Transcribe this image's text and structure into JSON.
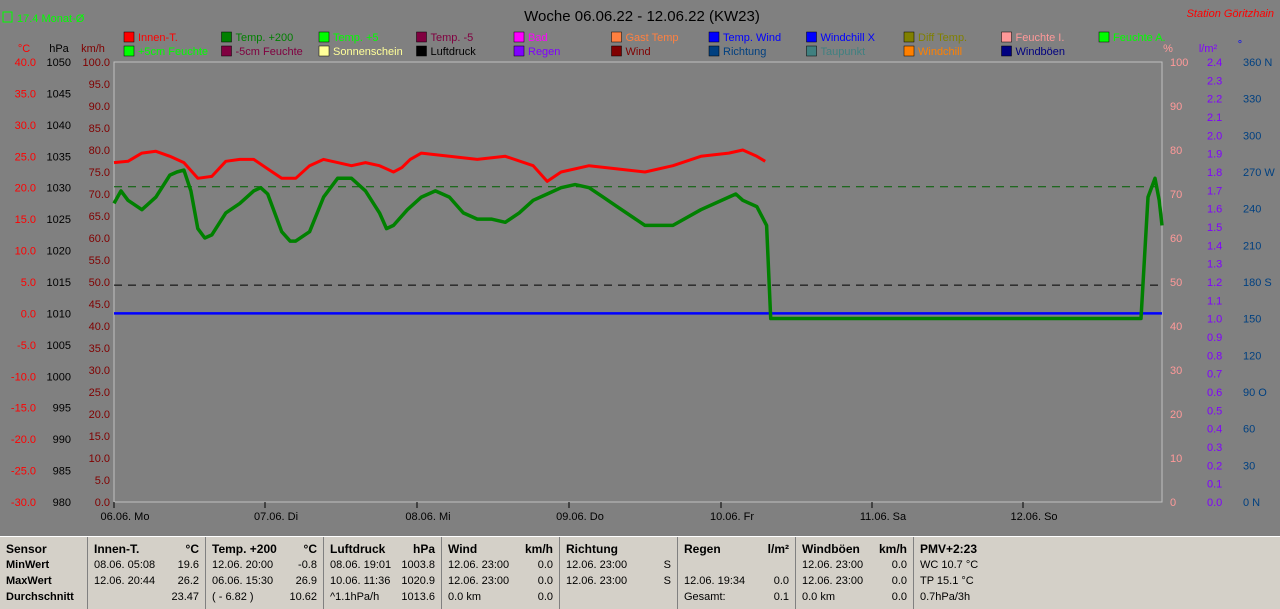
{
  "header": {
    "title": "Woche 06.06.22 - 12.06.22 (KW23)",
    "station": "Station Göritzhain",
    "monthly_avg": "17.4 Monat-Ø"
  },
  "units": {
    "c": "°C",
    "hpa": "hPa",
    "kmh": "km/h",
    "pct": "%",
    "lm2": "l/m²",
    "deg": "°"
  },
  "chart_data": {
    "type": "line",
    "x": [
      "06.06. Mo",
      "07.06. Di",
      "08.06. Mi",
      "09.06. Do",
      "10.06. Fr",
      "11.06. Sa",
      "12.06. So"
    ],
    "axes": {
      "temp": {
        "range": [
          -30,
          40
        ],
        "ticks": [
          "40.0",
          "35.0",
          "30.0",
          "25.0",
          "20.0",
          "15.0",
          "10.0",
          "5.0",
          "0.0",
          "-5.0",
          "-10.0",
          "-15.0",
          "-20.0",
          "-25.0",
          "-30.0"
        ]
      },
      "pressure": {
        "range": [
          980,
          1050
        ],
        "ticks": [
          "1050",
          "1045",
          "1040",
          "1035",
          "1030",
          "1025",
          "1020",
          "1015",
          "1010",
          "1005",
          "1000",
          "995",
          "990",
          "985",
          "980"
        ]
      },
      "wind": {
        "range": [
          0,
          100
        ],
        "ticks": [
          "100.0",
          "95.0",
          "90.0",
          "85.0",
          "80.0",
          "75.0",
          "70.0",
          "65.0",
          "60.0",
          "55.0",
          "50.0",
          "45.0",
          "40.0",
          "35.0",
          "30.0",
          "25.0",
          "20.0",
          "15.0",
          "10.0",
          "5.0",
          "0.0"
        ]
      },
      "humidity": {
        "range": [
          0,
          100
        ],
        "ticks": [
          "100",
          "90",
          "80",
          "70",
          "60",
          "50",
          "40",
          "30",
          "20",
          "10",
          "0"
        ]
      },
      "rain": {
        "range": [
          0,
          2.5
        ],
        "ticks": [
          "2.4",
          "2.3",
          "2.2",
          "2.1",
          "2.0",
          "1.9",
          "1.8",
          "1.7",
          "1.6",
          "1.5",
          "1.4",
          "1.3",
          "1.2",
          "1.1",
          "1.0",
          "0.9",
          "0.8",
          "0.7",
          "0.6",
          "0.5",
          "0.4",
          "0.3",
          "0.2",
          "0.1",
          "0.0"
        ]
      },
      "direction": {
        "range": [
          0,
          360
        ],
        "ticks": [
          "360 N",
          "330",
          "300",
          "270 W",
          "240",
          "210",
          "180 S",
          "150",
          "120",
          "90 O",
          "60",
          "30",
          "0 N"
        ]
      }
    },
    "legend": [
      {
        "name": "Innen-T.",
        "color": "#ff0000"
      },
      {
        "name": "Temp. +200",
        "color": "#008000"
      },
      {
        "name": "Temp. +5",
        "color": "#00ff00"
      },
      {
        "name": "Temp. -5",
        "color": "#800040"
      },
      {
        "name": "Bad",
        "color": "#ff00ff"
      },
      {
        "name": "Gast Temp",
        "color": "#ff8040"
      },
      {
        "name": "Temp. Wind",
        "color": "#0000ff"
      },
      {
        "name": "Windchill X",
        "color": "#0000ff"
      },
      {
        "name": "Diff Temp.",
        "color": "#808000"
      },
      {
        "name": "Feuchte I.",
        "color": "#ff9999"
      },
      {
        "name": "Feuchte A.",
        "color": "#00ff00"
      },
      {
        "name": "+5cm Feuchte",
        "color": "#00ff00"
      },
      {
        "name": "-5cm Feuchte",
        "color": "#800040"
      },
      {
        "name": "Sonnenschein",
        "color": "#ffff99"
      },
      {
        "name": "Luftdruck",
        "color": "#000000"
      },
      {
        "name": "Regen",
        "color": "#8000ff"
      },
      {
        "name": "Wind",
        "color": "#800000"
      },
      {
        "name": "Richtung",
        "color": "#004080"
      },
      {
        "name": "Taupunkt",
        "color": "#408080"
      },
      {
        "name": "Windchill",
        "color": "#ff8000"
      },
      {
        "name": "Windböen",
        "color": "#000080"
      }
    ],
    "series": [
      {
        "name": "Innen-T.",
        "axis": "temp",
        "values": [
          [
            0,
            24.0
          ],
          [
            10,
            24.2
          ],
          [
            20,
            25.5
          ],
          [
            30,
            25.8
          ],
          [
            40,
            25.0
          ],
          [
            50,
            24.0
          ],
          [
            60,
            21.5
          ],
          [
            70,
            21.8
          ],
          [
            80,
            24.2
          ],
          [
            90,
            24.5
          ],
          [
            100,
            24.5
          ],
          [
            110,
            23.0
          ],
          [
            120,
            21.5
          ],
          [
            130,
            21.5
          ],
          [
            140,
            23.5
          ],
          [
            150,
            24.5
          ],
          [
            160,
            24.0
          ],
          [
            170,
            23.5
          ],
          [
            180,
            24.0
          ],
          [
            190,
            23.5
          ],
          [
            200,
            22.5
          ],
          [
            206,
            23.2
          ],
          [
            212,
            24.5
          ],
          [
            220,
            25.5
          ],
          [
            240,
            25.0
          ],
          [
            260,
            24.5
          ],
          [
            280,
            25.0
          ],
          [
            300,
            23.5
          ],
          [
            310,
            21.0
          ],
          [
            320,
            22.5
          ],
          [
            340,
            23.5
          ],
          [
            360,
            23.0
          ],
          [
            380,
            22.5
          ],
          [
            400,
            23.5
          ],
          [
            420,
            25.0
          ],
          [
            440,
            25.5
          ],
          [
            450,
            26.0
          ],
          [
            460,
            25.0
          ],
          [
            466,
            24.2
          ]
        ]
      },
      {
        "name": "Temp. +200",
        "axis": "temp",
        "values": [
          [
            0,
            17.5
          ],
          [
            5,
            19.5
          ],
          [
            10,
            18.0
          ],
          [
            20,
            16.5
          ],
          [
            30,
            18.5
          ],
          [
            40,
            22.0
          ],
          [
            45,
            22.5
          ],
          [
            50,
            22.8
          ],
          [
            55,
            19.5
          ],
          [
            60,
            13.5
          ],
          [
            65,
            12.0
          ],
          [
            70,
            12.5
          ],
          [
            80,
            16.0
          ],
          [
            90,
            17.5
          ],
          [
            100,
            19.5
          ],
          [
            105,
            20.0
          ],
          [
            110,
            19.0
          ],
          [
            120,
            13.0
          ],
          [
            126,
            11.5
          ],
          [
            130,
            11.5
          ],
          [
            140,
            13.0
          ],
          [
            150,
            18.5
          ],
          [
            160,
            21.5
          ],
          [
            170,
            21.5
          ],
          [
            180,
            19.5
          ],
          [
            190,
            16.0
          ],
          [
            195,
            13.5
          ],
          [
            200,
            14.0
          ],
          [
            210,
            16.5
          ],
          [
            220,
            18.5
          ],
          [
            230,
            19.5
          ],
          [
            240,
            18.5
          ],
          [
            250,
            16.0
          ],
          [
            260,
            15.0
          ],
          [
            270,
            15.0
          ],
          [
            280,
            14.5
          ],
          [
            290,
            16.0
          ],
          [
            300,
            18.0
          ],
          [
            310,
            19.0
          ],
          [
            320,
            20.0
          ],
          [
            330,
            20.5
          ],
          [
            340,
            20.0
          ],
          [
            350,
            18.5
          ],
          [
            360,
            17.0
          ],
          [
            380,
            14.0
          ],
          [
            400,
            14.0
          ],
          [
            420,
            16.5
          ],
          [
            440,
            18.5
          ],
          [
            445,
            19.0
          ],
          [
            450,
            18.0
          ],
          [
            460,
            17.0
          ],
          [
            467,
            14.0
          ],
          [
            470,
            -0.8
          ],
          [
            480,
            -0.8
          ],
          [
            500,
            -0.8
          ],
          [
            520,
            -0.8
          ],
          [
            540,
            -0.8
          ],
          [
            560,
            -0.8
          ],
          [
            580,
            -0.8
          ],
          [
            600,
            -0.8
          ],
          [
            620,
            -0.8
          ],
          [
            640,
            -0.8
          ],
          [
            660,
            -0.8
          ],
          [
            680,
            -0.8
          ],
          [
            700,
            -0.8
          ],
          [
            720,
            -0.8
          ],
          [
            735,
            -0.8
          ],
          [
            740,
            18.5
          ],
          [
            745,
            21.5
          ],
          [
            748,
            18.0
          ],
          [
            750,
            14.0
          ]
        ]
      }
    ],
    "day_ticks_at": [
      0,
      151,
      303,
      455,
      607,
      758,
      909
    ],
    "day_minor_ticks": 24
  },
  "stats": {
    "sensor": {
      "header": "Sensor",
      "rows": [
        "MinWert",
        "MaxWert",
        "Durchschnitt"
      ]
    },
    "innen": {
      "header": "Innen-T.",
      "unit": "°C",
      "rows": [
        [
          "08.06.  05:08",
          "19.6"
        ],
        [
          "12.06.  20:44",
          "26.2"
        ],
        [
          "",
          "23.47"
        ]
      ]
    },
    "temp200": {
      "header": "Temp. +200",
      "unit": "°C",
      "rows": [
        [
          "12.06.  20:00",
          "-0.8"
        ],
        [
          "06.06.  15:30",
          "26.9"
        ],
        [
          "( - 6.82 )",
          "10.62"
        ]
      ]
    },
    "luftdruck": {
      "header": "Luftdruck",
      "unit": "hPa",
      "rows": [
        [
          "08.06.  19:01",
          "1003.8"
        ],
        [
          "10.06.  11:36",
          "1020.9"
        ],
        [
          "^1.1hPa/h",
          "1013.6"
        ]
      ]
    },
    "wind": {
      "header": "Wind",
      "unit": "km/h",
      "rows": [
        [
          "12.06.  23:00",
          "0.0"
        ],
        [
          "12.06.  23:00",
          "0.0"
        ],
        [
          "0.0 km",
          "0.0"
        ]
      ]
    },
    "richtung": {
      "header": "Richtung",
      "unit": "",
      "rows": [
        [
          "12.06.  23:00",
          "S"
        ],
        [
          "12.06.  23:00",
          "S"
        ],
        [
          "",
          ""
        ]
      ]
    },
    "regen": {
      "header": "Regen",
      "unit": "l/m²",
      "rows": [
        [
          "",
          ""
        ],
        [
          "12.06.  19:34",
          "0.0"
        ],
        [
          "Gesamt:",
          "0.1"
        ]
      ]
    },
    "windboen": {
      "header": "Windböen",
      "unit": "km/h",
      "rows": [
        [
          "12.06.  23:00",
          "0.0"
        ],
        [
          "12.06.  23:00",
          "0.0"
        ],
        [
          "0.0 km",
          "0.0"
        ]
      ]
    },
    "pmv": {
      "header": "PMV+2:23",
      "rows": [
        "WC 10.7 °C",
        "TP 15.1 °C",
        "0.7hPa/3h"
      ]
    }
  }
}
